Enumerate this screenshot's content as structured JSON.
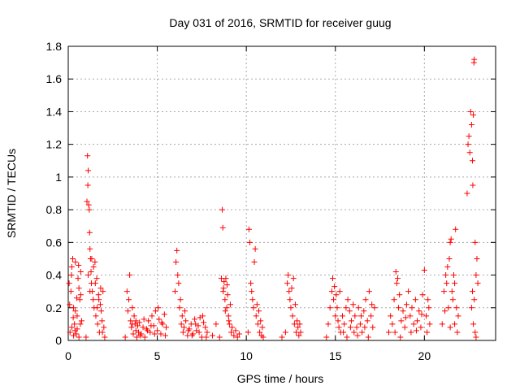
{
  "chart_data": {
    "type": "scatter",
    "title": "Day 031 of 2016, SRMTID for receiver guug",
    "xlabel": "GPS time / hours",
    "ylabel": "SRMTID / TECUs",
    "xlim": [
      0,
      24
    ],
    "ylim": [
      0,
      1.8
    ],
    "xticks": [
      0,
      5,
      10,
      15,
      20
    ],
    "yticks": [
      0,
      0.2,
      0.4,
      0.6,
      0.8,
      1,
      1.2,
      1.4,
      1.6,
      1.8
    ],
    "ytick_labels": [
      "0",
      "0.2",
      "0.4",
      "0.6",
      "0.8",
      "1",
      "1.2",
      "1.4",
      "1.6",
      "1.8"
    ],
    "grid": true,
    "marker": "plus",
    "color": "#ff0000",
    "series": [
      {
        "points": [
          [
            0.05,
            0.35
          ],
          [
            0.1,
            0.05
          ],
          [
            0.15,
            0.3
          ],
          [
            0.2,
            0.45
          ],
          [
            0.25,
            0.5
          ],
          [
            0.3,
            0.2
          ],
          [
            0.35,
            0.1
          ],
          [
            0.4,
            0.48
          ],
          [
            0.45,
            0.04
          ],
          [
            0.5,
            0.15
          ],
          [
            0.55,
            0.38
          ],
          [
            0.6,
            0.02
          ],
          [
            0.65,
            0.25
          ],
          [
            0.7,
            0.42
          ],
          [
            0.75,
            0.12
          ],
          [
            0.2,
            0.08
          ],
          [
            0.3,
            0.03
          ],
          [
            0.4,
            0.18
          ],
          [
            0.5,
            0.07
          ],
          [
            0.6,
            0.32
          ],
          [
            0.7,
            0.28
          ],
          [
            0.08,
            0.22
          ],
          [
            0.18,
            0.4
          ],
          [
            0.28,
            0.14
          ],
          [
            0.38,
            0.06
          ],
          [
            0.48,
            0.26
          ],
          [
            0.58,
            0.46
          ],
          [
            0.68,
            0.1
          ],
          [
            1.0,
            0.02
          ],
          [
            1.05,
            0.85
          ],
          [
            1.08,
            1.13
          ],
          [
            1.1,
            0.95
          ],
          [
            1.12,
            1.04
          ],
          [
            1.15,
            0.83
          ],
          [
            1.18,
            0.8
          ],
          [
            1.2,
            0.66
          ],
          [
            1.22,
            0.56
          ],
          [
            1.25,
            0.5
          ],
          [
            1.28,
            0.42
          ],
          [
            1.3,
            0.35
          ],
          [
            1.35,
            0.3
          ],
          [
            1.4,
            0.25
          ],
          [
            1.45,
            0.2
          ],
          [
            1.5,
            0.48
          ],
          [
            1.55,
            0.15
          ],
          [
            1.6,
            0.38
          ],
          [
            1.65,
            0.1
          ],
          [
            1.7,
            0.28
          ],
          [
            1.75,
            0.05
          ],
          [
            1.8,
            0.22
          ],
          [
            1.85,
            0.18
          ],
          [
            1.9,
            0.12
          ],
          [
            1.95,
            0.3
          ],
          [
            2.0,
            0.08
          ],
          [
            2.05,
            0.02
          ],
          [
            1.12,
            0.4
          ],
          [
            1.22,
            0.3
          ],
          [
            1.32,
            0.5
          ],
          [
            1.42,
            0.45
          ],
          [
            1.52,
            0.35
          ],
          [
            1.62,
            0.2
          ],
          [
            1.72,
            0.25
          ],
          [
            1.82,
            0.32
          ],
          [
            1.92,
            0.05
          ],
          [
            3.2,
            0.02
          ],
          [
            3.3,
            0.3
          ],
          [
            3.35,
            0.18
          ],
          [
            3.4,
            0.25
          ],
          [
            3.45,
            0.4
          ],
          [
            3.5,
            0.12
          ],
          [
            3.55,
            0.08
          ],
          [
            3.6,
            0.2
          ],
          [
            3.65,
            0.04
          ],
          [
            3.7,
            0.15
          ],
          [
            3.75,
            0.1
          ],
          [
            3.8,
            0.06
          ],
          [
            3.85,
            0.02
          ],
          [
            3.9,
            0.09
          ],
          [
            3.95,
            0.05
          ],
          [
            4.0,
            0.11
          ],
          [
            4.1,
            0.04
          ],
          [
            4.2,
            0.08
          ],
          [
            4.3,
            0.02
          ],
          [
            4.4,
            0.07
          ],
          [
            4.5,
            0.12
          ],
          [
            4.6,
            0.05
          ],
          [
            4.7,
            0.15
          ],
          [
            4.8,
            0.09
          ],
          [
            4.9,
            0.18
          ],
          [
            5.0,
            0.06
          ],
          [
            5.1,
            0.13
          ],
          [
            5.2,
            0.04
          ],
          [
            5.3,
            0.1
          ],
          [
            5.4,
            0.16
          ],
          [
            5.5,
            0.08
          ],
          [
            3.6,
            0.1
          ],
          [
            3.8,
            0.12
          ],
          [
            4.05,
            0.03
          ],
          [
            4.25,
            0.13
          ],
          [
            4.45,
            0.06
          ],
          [
            4.65,
            0.09
          ],
          [
            4.85,
            0.04
          ],
          [
            5.05,
            0.2
          ],
          [
            5.25,
            0.11
          ],
          [
            5.45,
            0.03
          ],
          [
            6.0,
            0.3
          ],
          [
            6.05,
            0.48
          ],
          [
            6.1,
            0.55
          ],
          [
            6.15,
            0.4
          ],
          [
            6.2,
            0.35
          ],
          [
            6.25,
            0.2
          ],
          [
            6.3,
            0.25
          ],
          [
            6.35,
            0.1
          ],
          [
            6.4,
            0.15
          ],
          [
            6.45,
            0.05
          ],
          [
            6.5,
            0.08
          ],
          [
            6.6,
            0.12
          ],
          [
            6.7,
            0.03
          ],
          [
            6.8,
            0.07
          ],
          [
            6.9,
            0.1
          ],
          [
            7.0,
            0.04
          ],
          [
            7.1,
            0.13
          ],
          [
            7.2,
            0.06
          ],
          [
            7.3,
            0.09
          ],
          [
            7.4,
            0.14
          ],
          [
            7.5,
            0.02
          ],
          [
            7.6,
            0.11
          ],
          [
            7.7,
            0.08
          ],
          [
            7.8,
            0.05
          ],
          [
            6.55,
            0.18
          ],
          [
            6.75,
            0.06
          ],
          [
            6.95,
            0.03
          ],
          [
            7.15,
            0.1
          ],
          [
            7.35,
            0.05
          ],
          [
            7.55,
            0.15
          ],
          [
            7.75,
            0.02
          ],
          [
            8.1,
            0.03
          ],
          [
            8.3,
            0.1
          ],
          [
            8.5,
            0.02
          ],
          [
            8.6,
            0.38
          ],
          [
            8.65,
            0.8
          ],
          [
            8.68,
            0.69
          ],
          [
            8.7,
            0.3
          ],
          [
            8.75,
            0.36
          ],
          [
            8.8,
            0.25
          ],
          [
            8.85,
            0.38
          ],
          [
            8.9,
            0.2
          ],
          [
            8.95,
            0.28
          ],
          [
            9.0,
            0.15
          ],
          [
            9.05,
            0.1
          ],
          [
            9.1,
            0.22
          ],
          [
            9.15,
            0.05
          ],
          [
            9.2,
            0.08
          ],
          [
            9.3,
            0.03
          ],
          [
            9.4,
            0.06
          ],
          [
            9.5,
            0.02
          ],
          [
            9.6,
            0.04
          ],
          [
            8.72,
            0.32
          ],
          [
            8.82,
            0.18
          ],
          [
            8.92,
            0.34
          ],
          [
            9.02,
            0.12
          ],
          [
            10.1,
            0.05
          ],
          [
            10.15,
            0.68
          ],
          [
            10.2,
            0.6
          ],
          [
            10.25,
            0.35
          ],
          [
            10.3,
            0.3
          ],
          [
            10.35,
            0.25
          ],
          [
            10.4,
            0.2
          ],
          [
            10.45,
            0.48
          ],
          [
            10.5,
            0.56
          ],
          [
            10.55,
            0.15
          ],
          [
            10.6,
            0.22
          ],
          [
            10.65,
            0.1
          ],
          [
            10.7,
            0.18
          ],
          [
            10.75,
            0.05
          ],
          [
            10.8,
            0.12
          ],
          [
            10.85,
            0.03
          ],
          [
            10.9,
            0.08
          ],
          [
            10.95,
            0.02
          ],
          [
            12.3,
            0.35
          ],
          [
            12.35,
            0.4
          ],
          [
            12.4,
            0.3
          ],
          [
            12.45,
            0.25
          ],
          [
            12.5,
            0.2
          ],
          [
            12.55,
            0.32
          ],
          [
            12.6,
            0.15
          ],
          [
            12.65,
            0.38
          ],
          [
            12.7,
            0.1
          ],
          [
            12.75,
            0.22
          ],
          [
            12.8,
            0.05
          ],
          [
            12.85,
            0.12
          ],
          [
            12.9,
            0.08
          ],
          [
            12.95,
            0.03
          ],
          [
            13.0,
            0.1
          ],
          [
            13.05,
            0.05
          ],
          [
            12.0,
            0.02
          ],
          [
            12.2,
            0.05
          ],
          [
            14.5,
            0.02
          ],
          [
            14.6,
            0.1
          ],
          [
            14.7,
            0.2
          ],
          [
            14.8,
            0.3
          ],
          [
            14.85,
            0.38
          ],
          [
            14.9,
            0.25
          ],
          [
            14.95,
            0.33
          ],
          [
            15.0,
            0.15
          ],
          [
            15.05,
            0.28
          ],
          [
            15.1,
            0.2
          ],
          [
            15.15,
            0.12
          ],
          [
            15.2,
            0.08
          ],
          [
            15.3,
            0.05
          ],
          [
            15.4,
            0.15
          ],
          [
            15.5,
            0.1
          ],
          [
            15.6,
            0.2
          ],
          [
            15.7,
            0.25
          ],
          [
            15.8,
            0.18
          ],
          [
            15.9,
            0.12
          ],
          [
            16.0,
            0.22
          ],
          [
            16.1,
            0.15
          ],
          [
            16.2,
            0.08
          ],
          [
            16.3,
            0.2
          ],
          [
            16.4,
            0.1
          ],
          [
            16.5,
            0.05
          ],
          [
            16.6,
            0.18
          ],
          [
            16.7,
            0.25
          ],
          [
            16.8,
            0.12
          ],
          [
            16.9,
            0.3
          ],
          [
            17.0,
            0.15
          ],
          [
            17.1,
            0.08
          ],
          [
            17.2,
            0.2
          ],
          [
            15.25,
            0.3
          ],
          [
            15.45,
            0.05
          ],
          [
            15.65,
            0.02
          ],
          [
            15.85,
            0.08
          ],
          [
            16.05,
            0.05
          ],
          [
            16.25,
            0.03
          ],
          [
            16.45,
            0.15
          ],
          [
            16.65,
            0.08
          ],
          [
            16.85,
            0.02
          ],
          [
            17.05,
            0.22
          ],
          [
            18.0,
            0.05
          ],
          [
            18.1,
            0.15
          ],
          [
            18.2,
            0.1
          ],
          [
            18.3,
            0.25
          ],
          [
            18.4,
            0.42
          ],
          [
            18.45,
            0.35
          ],
          [
            18.5,
            0.38
          ],
          [
            18.55,
            0.2
          ],
          [
            18.6,
            0.28
          ],
          [
            18.7,
            0.12
          ],
          [
            18.8,
            0.18
          ],
          [
            18.9,
            0.08
          ],
          [
            19.0,
            0.22
          ],
          [
            19.1,
            0.3
          ],
          [
            19.2,
            0.15
          ],
          [
            19.3,
            0.2
          ],
          [
            19.4,
            0.1
          ],
          [
            19.5,
            0.25
          ],
          [
            19.6,
            0.12
          ],
          [
            19.7,
            0.18
          ],
          [
            19.8,
            0.08
          ],
          [
            19.9,
            0.28
          ],
          [
            20.0,
            0.43
          ],
          [
            20.1,
            0.15
          ],
          [
            20.2,
            0.25
          ],
          [
            20.3,
            0.1
          ],
          [
            18.35,
            0.05
          ],
          [
            18.65,
            0.02
          ],
          [
            18.95,
            0.14
          ],
          [
            19.25,
            0.05
          ],
          [
            19.55,
            0.06
          ],
          [
            19.85,
            0.16
          ],
          [
            20.15,
            0.05
          ],
          [
            20.25,
            0.2
          ],
          [
            21.0,
            0.1
          ],
          [
            21.1,
            0.3
          ],
          [
            21.2,
            0.4
          ],
          [
            21.25,
            0.35
          ],
          [
            21.3,
            0.45
          ],
          [
            21.35,
            0.2
          ],
          [
            21.4,
            0.5
          ],
          [
            21.45,
            0.6
          ],
          [
            21.5,
            0.62
          ],
          [
            21.55,
            0.3
          ],
          [
            21.6,
            0.25
          ],
          [
            21.65,
            0.4
          ],
          [
            21.7,
            0.1
          ],
          [
            21.75,
            0.68
          ],
          [
            21.8,
            0.2
          ],
          [
            21.85,
            0.05
          ],
          [
            21.9,
            0.15
          ],
          [
            21.15,
            0.18
          ],
          [
            21.45,
            0.08
          ],
          [
            21.7,
            0.35
          ],
          [
            22.4,
            0.9
          ],
          [
            22.45,
            1.2
          ],
          [
            22.5,
            1.25
          ],
          [
            22.55,
            1.15
          ],
          [
            22.6,
            1.4
          ],
          [
            22.65,
            1.32
          ],
          [
            22.7,
            1.1
          ],
          [
            22.72,
            0.95
          ],
          [
            22.75,
            1.38
          ],
          [
            22.78,
            1.7
          ],
          [
            22.8,
            1.72
          ],
          [
            22.85,
            0.6
          ],
          [
            22.9,
            0.4
          ],
          [
            22.95,
            0.5
          ],
          [
            23.0,
            0.35
          ],
          [
            22.8,
            0.25
          ],
          [
            22.85,
            0.05
          ],
          [
            22.9,
            0.02
          ],
          [
            22.7,
            0.3
          ],
          [
            22.65,
            0.2
          ],
          [
            22.75,
            0.1
          ]
        ]
      }
    ]
  }
}
